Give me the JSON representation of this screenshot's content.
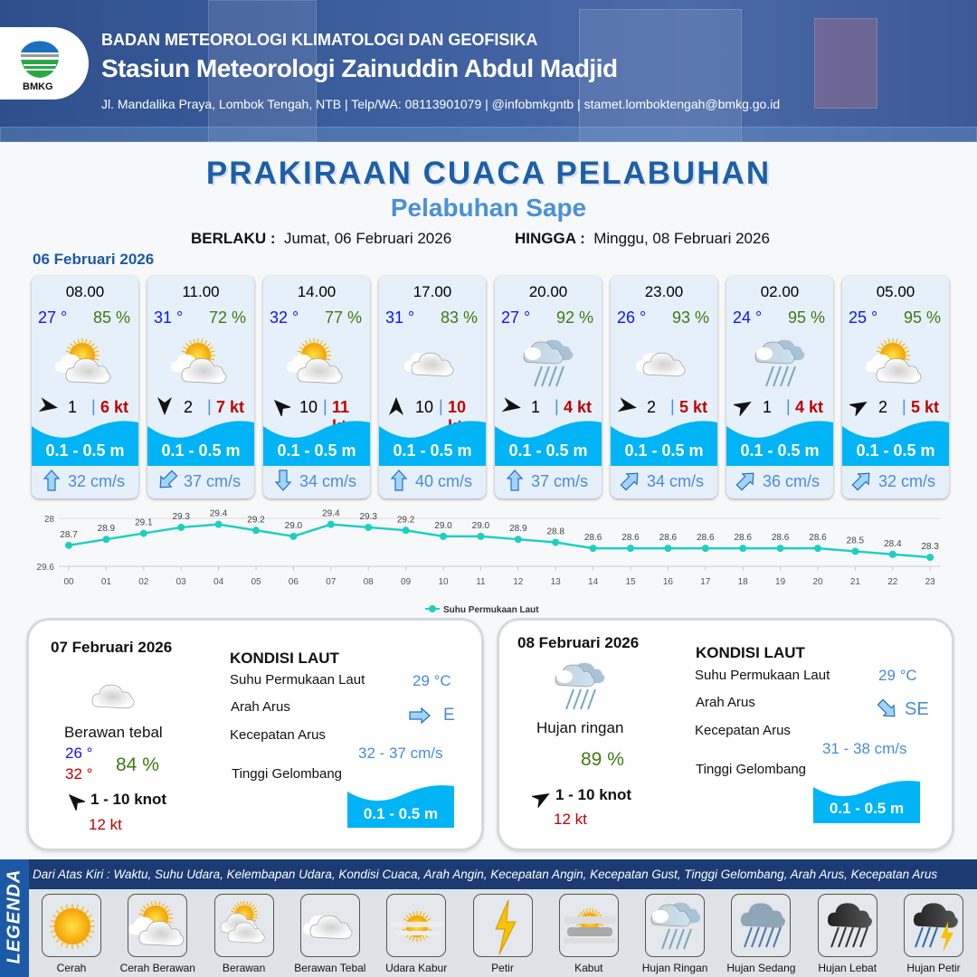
{
  "header": {
    "agency": "BADAN METEOROLOGI KLIMATOLOGI DAN GEOFISIKA",
    "station": "Stasiun Meteorologi Zainuddin Abdul Madjid",
    "contact": "Jl. Mandalika Praya, Lombok Tengah, NTB | Telp/WA: 08113901079 | @infobmkgntb | stamet.lomboktengah@bmkg.go.id",
    "logo_text": "BMKG"
  },
  "title": "PRAKIRAAN CUACA PELABUHAN",
  "subtitle": "Pelabuhan Sape",
  "validity": {
    "from_label": "BERLAKU :",
    "from": "Jumat, 06 Februari 2026",
    "to_label": "HINGGA :",
    "to": "Minggu, 08 Februari 2026"
  },
  "day1_date": "06 Februari 2026",
  "colors": {
    "temp": "#0a14ff",
    "humidity": "#3e7a12",
    "gust": "#c00000",
    "wave": "#00b4f5",
    "current": "#4a8ad8",
    "heading": "#1d5aa6"
  },
  "cards": [
    {
      "time": "08.00",
      "temp": "27 °",
      "humidity": "85 %",
      "weather": "cerah-berawan",
      "wind_dir_deg": 100,
      "wind": "1",
      "gust": "6 kt",
      "wave": "0.1 - 0.5 m",
      "current_dir_deg": 0,
      "current": "32 cm/s"
    },
    {
      "time": "11.00",
      "temp": "31 °",
      "humidity": "72 %",
      "weather": "cerah-berawan",
      "wind_dir_deg": 180,
      "wind": "2",
      "gust": "7 kt",
      "wave": "0.1 - 0.5 m",
      "current_dir_deg": 225,
      "current": "37 cm/s"
    },
    {
      "time": "14.00",
      "temp": "32 °",
      "humidity": "77 %",
      "weather": "cerah-berawan",
      "wind_dir_deg": 315,
      "wind": "10",
      "gust": "11 kt",
      "wave": "0.1 - 0.5 m",
      "current_dir_deg": 180,
      "current": "34 cm/s"
    },
    {
      "time": "17.00",
      "temp": "31 °",
      "humidity": "83 %",
      "weather": "berawan-tebal",
      "wind_dir_deg": 0,
      "wind": "10",
      "gust": "10 kt",
      "wave": "0.1 - 0.5 m",
      "current_dir_deg": 0,
      "current": "40 cm/s"
    },
    {
      "time": "20.00",
      "temp": "27 °",
      "humidity": "92 %",
      "weather": "hujan-ringan",
      "wind_dir_deg": 100,
      "wind": "1",
      "gust": "4 kt",
      "wave": "0.1 - 0.5 m",
      "current_dir_deg": 0,
      "current": "37 cm/s"
    },
    {
      "time": "23.00",
      "temp": "26 °",
      "humidity": "93 %",
      "weather": "berawan-tebal",
      "wind_dir_deg": 100,
      "wind": "2",
      "gust": "5 kt",
      "wave": "0.1 - 0.5 m",
      "current_dir_deg": 45,
      "current": "34 cm/s"
    },
    {
      "time": "02.00",
      "temp": "24 °",
      "humidity": "95 %",
      "weather": "hujan-ringan",
      "wind_dir_deg": 60,
      "wind": "1",
      "gust": "4 kt",
      "wave": "0.1 - 0.5 m",
      "current_dir_deg": 45,
      "current": "36 cm/s"
    },
    {
      "time": "05.00",
      "temp": "25 °",
      "humidity": "95 %",
      "weather": "cerah-berawan",
      "wind_dir_deg": 60,
      "wind": "2",
      "gust": "5 kt",
      "wave": "0.1 - 0.5 m",
      "current_dir_deg": 45,
      "current": "32 cm/s"
    }
  ],
  "chart_data": {
    "type": "line",
    "categories": [
      "00",
      "01",
      "02",
      "03",
      "04",
      "05",
      "06",
      "07",
      "08",
      "09",
      "10",
      "11",
      "12",
      "13",
      "14",
      "15",
      "16",
      "17",
      "18",
      "19",
      "20",
      "21",
      "22",
      "23"
    ],
    "series": [
      {
        "name": "Suhu Permukaan Laut",
        "color": "#1ecfc0",
        "values": [
          28.7,
          28.9,
          29.1,
          29.3,
          29.4,
          29.2,
          29.0,
          29.4,
          29.3,
          29.2,
          29.0,
          29.0,
          28.9,
          28.8,
          28.6,
          28.6,
          28.6,
          28.6,
          28.6,
          28.6,
          28.6,
          28.5,
          28.4,
          28.3
        ]
      }
    ],
    "ylim": [
      28,
      29.6
    ],
    "yticks": [
      "28",
      "29.6"
    ],
    "grid": true,
    "legend": "bottom"
  },
  "days": [
    {
      "date": "07 Februari 2026",
      "weather": "berawan-tebal",
      "weather_label": "Berawan tebal",
      "temp_min": "26 °",
      "temp_max": "32 °",
      "humidity": "84 %",
      "wind_dir_deg": 315,
      "wind": "1  - 10 knot",
      "gust": "12 kt",
      "sea": {
        "title": "KONDISI LAUT",
        "sst_label": "Suhu Permukaan Laut",
        "sst": "29 °C",
        "dir_label": "Arah Arus",
        "dir": "E",
        "dir_deg": 90,
        "speed_label": "Kecepatan Arus",
        "speed": "32 - 37 cm/s",
        "wave_label": "Tinggi Gelombang",
        "wave": "0.1 - 0.5 m"
      }
    },
    {
      "date": "08 Februari 2026",
      "weather": "hujan-ringan",
      "weather_label": "Hujan ringan",
      "humidity": "89 %",
      "wind_dir_deg": 60,
      "wind": "1  - 10 knot",
      "gust": "12 kt",
      "sea": {
        "title": "KONDISI LAUT",
        "sst_label": "Suhu Permukaan Laut",
        "sst": "29 °C",
        "dir_label": "Arah Arus",
        "dir": "SE",
        "dir_deg": 135,
        "speed_label": "Kecepatan Arus",
        "speed": "31 - 38 cm/s",
        "wave_label": "Tinggi Gelombang",
        "wave": "0.1 - 0.5 m"
      }
    }
  ],
  "legend": {
    "title": "LEGENDA",
    "description": "Dari Atas Kiri : Waktu, Suhu Udara, Kelembapan Udara, Kondisi Cuaca, Arah Angin, Kecepatan Angin, Kecepatan Gust, Tinggi Gelombang, Arah Arus, Kecepatan Arus",
    "items": [
      {
        "label": "Cerah",
        "icon": "cerah"
      },
      {
        "label": "Cerah Berawan",
        "icon": "cerah-berawan"
      },
      {
        "label": "Berawan",
        "icon": "berawan"
      },
      {
        "label": "Berawan Tebal",
        "icon": "berawan-tebal"
      },
      {
        "label": "Udara Kabur",
        "icon": "udara-kabur"
      },
      {
        "label": "Petir",
        "icon": "petir"
      },
      {
        "label": "Kabut",
        "icon": "kabut"
      },
      {
        "label": "Hujan Ringan",
        "icon": "hujan-ringan"
      },
      {
        "label": "Hujan Sedang",
        "icon": "hujan-sedang"
      },
      {
        "label": "Hujan Lebat",
        "icon": "hujan-lebat"
      },
      {
        "label": "Hujan Petir",
        "icon": "hujan-petir"
      }
    ]
  }
}
